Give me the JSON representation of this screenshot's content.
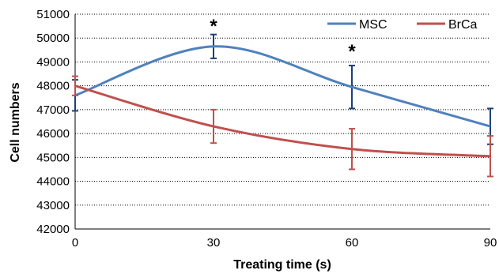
{
  "chart_data": {
    "type": "line",
    "title": "",
    "xlabel": "Treating time (s)",
    "ylabel": "Cell numbers",
    "x": [
      0,
      30,
      60,
      90
    ],
    "x_ticks": [
      "0",
      "30",
      "60",
      "90"
    ],
    "xlim": [
      0,
      90
    ],
    "ylim": [
      42000,
      51000
    ],
    "y_ticks": [
      "42000",
      "43000",
      "44000",
      "45000",
      "46000",
      "47000",
      "48000",
      "49000",
      "50000",
      "51000"
    ],
    "grid": "horizontal dotted",
    "legend_position": "top-right",
    "series": [
      {
        "name": "MSC",
        "color": "#4f81bd",
        "errorbar_color": "#1f3f7a",
        "values": [
          47600,
          49650,
          47950,
          46300
        ],
        "error": [
          650,
          500,
          900,
          750
        ]
      },
      {
        "name": "BrCa",
        "color": "#c0504d",
        "errorbar_color": "#c0504d",
        "values": [
          48000,
          46300,
          45350,
          45050
        ],
        "error": [
          400,
          700,
          850,
          850
        ]
      }
    ],
    "annotations": [
      {
        "text": "*",
        "x": 30,
        "y": 50500
      },
      {
        "text": "*",
        "x": 60,
        "y": 49450
      }
    ]
  }
}
